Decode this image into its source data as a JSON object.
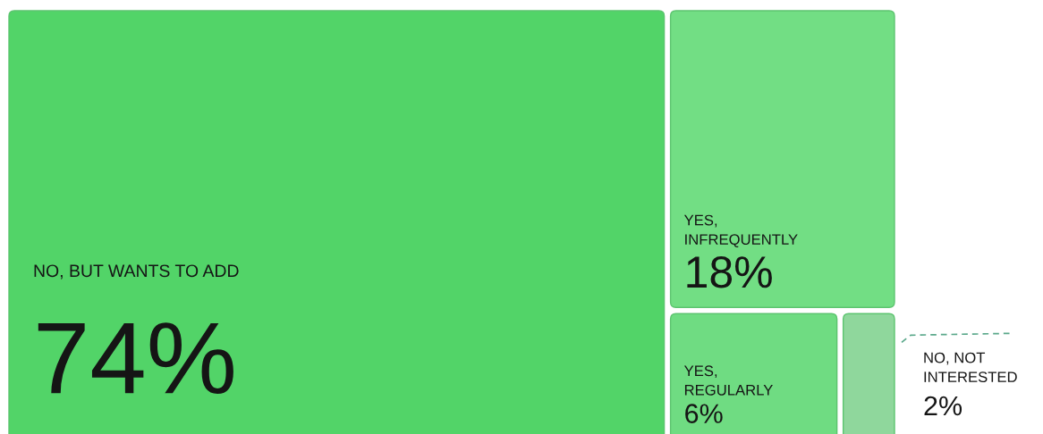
{
  "chart_data": {
    "type": "other",
    "categories": [
      "NO, BUT WANTS TO ADD",
      "YES,\nINFREQUENTLY",
      "YES,\nREGULARLY",
      "NO, NOT\nINTERESTED"
    ],
    "values": [
      74,
      18,
      6,
      2
    ],
    "value_labels": [
      "74%",
      "18%",
      "6%",
      "2%"
    ],
    "colors": [
      "#52d468",
      "#72de84",
      "#6fdc82",
      "#8fd79c"
    ]
  }
}
